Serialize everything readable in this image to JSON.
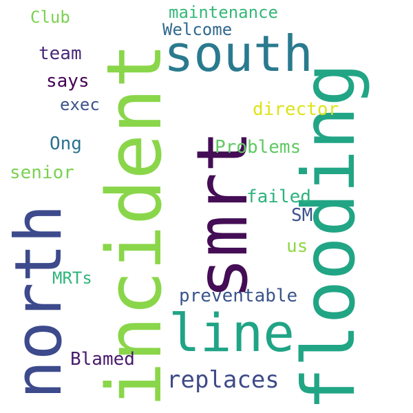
{
  "words": [
    {
      "text": "flooding",
      "color": "#21a585",
      "orientation": "vertical"
    },
    {
      "text": "incident",
      "color": "#8ad64a",
      "orientation": "vertical"
    },
    {
      "text": "smrt",
      "color": "#440d55",
      "orientation": "vertical"
    },
    {
      "text": "north",
      "color": "#3d4a8c",
      "orientation": "vertical"
    },
    {
      "text": "south",
      "color": "#2a7a8e",
      "orientation": "horizontal"
    },
    {
      "text": "line",
      "color": "#20a486",
      "orientation": "horizontal"
    },
    {
      "text": "replaces",
      "color": "#3e4a89",
      "orientation": "horizontal"
    },
    {
      "text": "preventable",
      "color": "#3a548c",
      "orientation": "horizontal"
    },
    {
      "text": "Blamed",
      "color": "#481a6c",
      "orientation": "horizontal"
    },
    {
      "text": "MRTs",
      "color": "#2fb47c",
      "orientation": "horizontal"
    },
    {
      "text": "us",
      "color": "#8fd744",
      "orientation": "horizontal"
    },
    {
      "text": "SM",
      "color": "#3b528b",
      "orientation": "horizontal"
    },
    {
      "text": "failed",
      "color": "#2db27d",
      "orientation": "horizontal"
    },
    {
      "text": "senior",
      "color": "#7ad151",
      "orientation": "horizontal"
    },
    {
      "text": "Problems",
      "color": "#5ec962",
      "orientation": "horizontal"
    },
    {
      "text": "Ong",
      "color": "#2c728e",
      "orientation": "horizontal"
    },
    {
      "text": "director",
      "color": "#dde318",
      "orientation": "horizontal"
    },
    {
      "text": "exec",
      "color": "#3b528b",
      "orientation": "horizontal"
    },
    {
      "text": "says",
      "color": "#440154",
      "orientation": "horizontal"
    },
    {
      "text": "team",
      "color": "#482878",
      "orientation": "horizontal"
    },
    {
      "text": "Welcome",
      "color": "#31688e",
      "orientation": "horizontal"
    },
    {
      "text": "maintenance",
      "color": "#35b779",
      "orientation": "horizontal"
    },
    {
      "text": "Club",
      "color": "#7ad151",
      "orientation": "horizontal"
    }
  ]
}
